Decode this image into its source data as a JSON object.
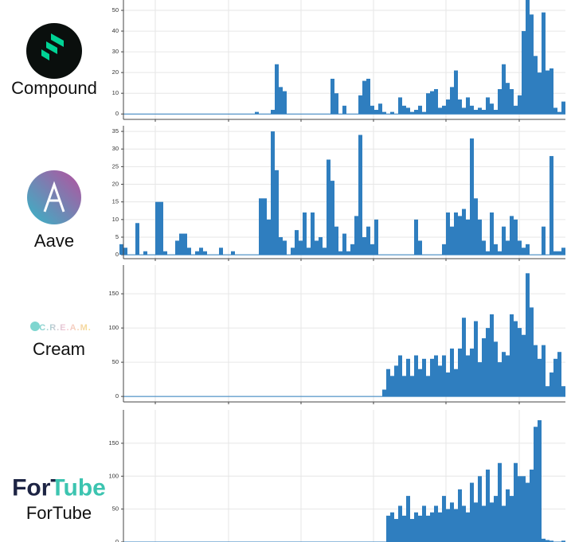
{
  "chart_data": [
    {
      "type": "bar",
      "label": "Compound",
      "color": "#2f7ebf",
      "ylim": [
        -2.6,
        55
      ],
      "yticks": [
        0,
        10,
        20,
        30,
        40,
        50
      ],
      "grid": true,
      "values": [
        0,
        0,
        0,
        0,
        0,
        0,
        0,
        0,
        0,
        0,
        0,
        0,
        0,
        0,
        0,
        0,
        0,
        0,
        0,
        0,
        0,
        0,
        0,
        0,
        0,
        0,
        0,
        0,
        0,
        0,
        0,
        0,
        0,
        0,
        1,
        0,
        0,
        0,
        2,
        24,
        13,
        11,
        0,
        0,
        0,
        0,
        0,
        0,
        0,
        0,
        0,
        0,
        0,
        17,
        10,
        0,
        4,
        0,
        0,
        0,
        9,
        16,
        17,
        4,
        2,
        5,
        1,
        0,
        1,
        0,
        8,
        4,
        3,
        1,
        2,
        4,
        1,
        10,
        11,
        12,
        3,
        4,
        7,
        13,
        21,
        7,
        3,
        8,
        4,
        2,
        3,
        2,
        8,
        5,
        2,
        12,
        24,
        15,
        12,
        4,
        9,
        40,
        55,
        48,
        28,
        20,
        49,
        21,
        22,
        3,
        1,
        6
      ]
    },
    {
      "type": "bar",
      "label": "Aave",
      "color": "#2f7ebf",
      "ylim": [
        -1.1,
        36.6
      ],
      "yticks": [
        0,
        5,
        10,
        15,
        20,
        25,
        30,
        35
      ],
      "grid": true,
      "values": [
        3,
        2,
        0,
        0,
        9,
        0,
        1,
        0,
        0,
        15,
        15,
        1,
        0,
        0,
        4,
        6,
        6,
        2,
        0,
        1,
        2,
        1,
        0,
        0,
        0,
        2,
        0,
        0,
        1,
        0,
        0,
        0,
        0,
        0,
        0,
        16,
        16,
        10,
        35,
        24,
        5,
        4,
        0,
        2,
        7,
        4,
        12,
        2,
        12,
        4,
        5,
        2,
        27,
        21,
        8,
        1,
        6,
        1,
        3,
        11,
        34,
        5,
        8,
        3,
        10,
        0,
        0,
        0,
        0,
        0,
        0,
        0,
        0,
        0,
        10,
        4,
        0,
        0,
        0,
        0,
        0,
        3,
        12,
        8,
        12,
        11,
        13,
        10,
        33,
        16,
        10,
        4,
        1,
        12,
        3,
        1,
        8,
        4,
        11,
        10,
        4,
        2,
        3,
        0,
        0,
        0,
        8,
        0,
        28,
        1,
        1,
        2
      ]
    },
    {
      "type": "bar",
      "label": "Cream",
      "logo_text": "C.R.E.A.M.",
      "color": "#2f7ebf",
      "ylim": [
        -8,
        192
      ],
      "yticks": [
        0,
        50,
        100,
        150
      ],
      "grid": true,
      "values": [
        0,
        0,
        0,
        0,
        0,
        0,
        0,
        0,
        0,
        0,
        0,
        0,
        0,
        0,
        0,
        0,
        0,
        0,
        0,
        0,
        0,
        0,
        0,
        0,
        0,
        0,
        0,
        0,
        0,
        0,
        0,
        0,
        0,
        0,
        0,
        0,
        0,
        0,
        0,
        0,
        0,
        0,
        0,
        0,
        0,
        0,
        0,
        0,
        0,
        0,
        0,
        0,
        0,
        0,
        0,
        0,
        0,
        0,
        0,
        0,
        0,
        0,
        0,
        0,
        0,
        0,
        10,
        40,
        30,
        45,
        60,
        30,
        55,
        30,
        60,
        40,
        55,
        30,
        55,
        60,
        45,
        60,
        35,
        70,
        40,
        70,
        115,
        60,
        70,
        110,
        50,
        85,
        100,
        120,
        80,
        50,
        65,
        60,
        120,
        110,
        100,
        90,
        180,
        130,
        75,
        55,
        75,
        15,
        35,
        55,
        65,
        15
      ]
    },
    {
      "type": "bar",
      "label": "ForTube",
      "logo_text": "ForTube",
      "color": "#2f7ebf",
      "ylim": [
        0,
        200.7
      ],
      "yticks": [
        0,
        50,
        100,
        150
      ],
      "grid": true,
      "values": [
        0,
        0,
        0,
        0,
        0,
        0,
        0,
        0,
        0,
        0,
        0,
        0,
        0,
        0,
        0,
        0,
        0,
        0,
        0,
        0,
        0,
        0,
        0,
        0,
        0,
        0,
        0,
        0,
        0,
        0,
        0,
        0,
        0,
        0,
        0,
        0,
        0,
        0,
        0,
        0,
        0,
        0,
        0,
        0,
        0,
        0,
        0,
        0,
        0,
        0,
        0,
        0,
        0,
        0,
        0,
        0,
        0,
        0,
        0,
        0,
        0,
        0,
        0,
        0,
        0,
        0,
        0,
        40,
        45,
        35,
        55,
        40,
        70,
        35,
        45,
        40,
        55,
        40,
        45,
        55,
        45,
        70,
        50,
        60,
        50,
        80,
        55,
        45,
        90,
        60,
        100,
        55,
        110,
        60,
        70,
        120,
        55,
        80,
        70,
        120,
        100,
        100,
        90,
        110,
        175,
        185,
        5,
        3,
        2,
        0,
        0,
        2
      ]
    }
  ]
}
